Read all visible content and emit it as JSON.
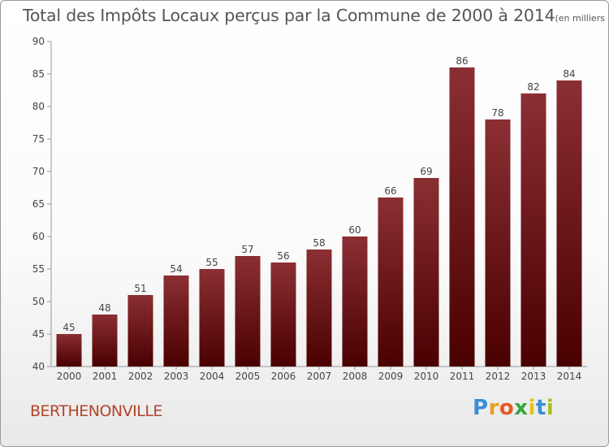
{
  "chart_data": {
    "type": "bar",
    "title": "Total des Impôts Locaux perçus par la Commune de 2000 à 2014",
    "unit": "(en milliers d'€)",
    "categories": [
      "2000",
      "2001",
      "2002",
      "2003",
      "2004",
      "2005",
      "2006",
      "2007",
      "2008",
      "2009",
      "2010",
      "2011",
      "2012",
      "2013",
      "2014"
    ],
    "values": [
      45,
      48,
      51,
      54,
      55,
      57,
      56,
      58,
      60,
      66,
      69,
      86,
      78,
      82,
      84
    ],
    "ylim": [
      40,
      90
    ],
    "yticks": [
      40,
      45,
      50,
      55,
      60,
      65,
      70,
      75,
      80,
      85,
      90
    ],
    "xlabel": "",
    "ylabel": "",
    "grid": false,
    "bar_color_top": "#8b2f33",
    "bar_color_bottom": "#4a0000"
  },
  "commune": "BERTHENONVILLE",
  "logo": {
    "letters": [
      "P",
      "r",
      "o",
      "x",
      "i",
      "t",
      "i"
    ],
    "colors": [
      "#3a8fd6",
      "#e8a020",
      "#e85a20",
      "#3aa63a",
      "#e8c020",
      "#3a8fd6",
      "#a0c020"
    ]
  }
}
